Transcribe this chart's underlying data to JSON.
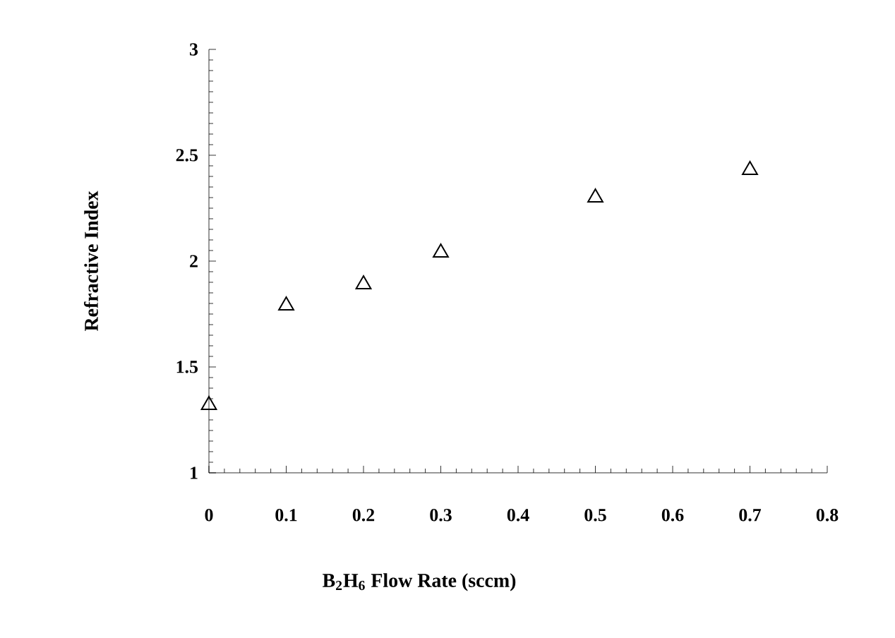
{
  "chart_data": {
    "type": "scatter",
    "xlabel": "B$_{2}$H$_{6}$ Flow Rate (sccm)",
    "ylabel": "Refractive Index",
    "x": [
      0,
      0.1,
      0.2,
      0.3,
      0.5,
      0.7
    ],
    "values": [
      1.32,
      1.79,
      1.89,
      2.04,
      2.3,
      2.43
    ],
    "color": "#000000",
    "marker": "triangle",
    "xlim": [
      0,
      0.8
    ],
    "ylim": [
      1,
      3
    ],
    "xticks": [
      0,
      0.1,
      0.2,
      0.3,
      0.4,
      0.5,
      0.6,
      0.7,
      0.8
    ],
    "yticks": [
      1,
      1.5,
      2,
      2.5,
      3
    ]
  }
}
